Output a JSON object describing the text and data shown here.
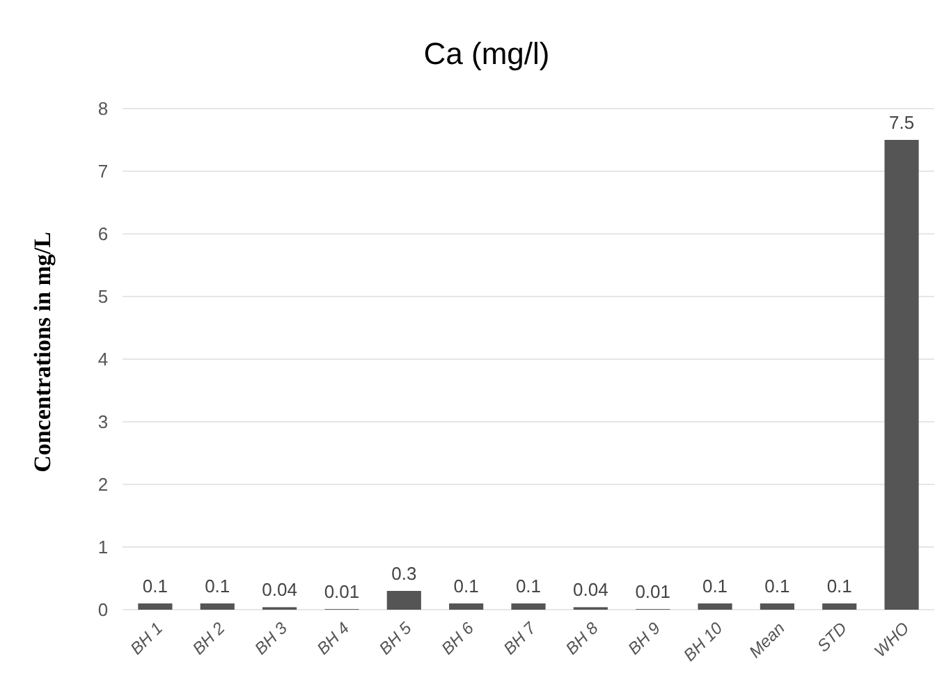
{
  "chart_data": {
    "type": "bar",
    "title": "Ca (mg/l)",
    "ylabel": "Concentrations in mg/L",
    "categories": [
      "BH 1",
      "BH 2",
      "BH 3",
      "BH 4",
      "BH 5",
      "BH 6",
      "BH 7",
      "BH 8",
      "BH 9",
      "BH 10",
      "Mean",
      "STD",
      "WHO"
    ],
    "values": [
      0.1,
      0.1,
      0.04,
      0.01,
      0.3,
      0.1,
      0.1,
      0.04,
      0.01,
      0.1,
      0.1,
      0.1,
      7.5
    ],
    "color": "#555555",
    "ylim": [
      0,
      8
    ],
    "yticks": [
      0,
      1,
      2,
      3,
      4,
      5,
      6,
      7,
      8
    ],
    "grid": true,
    "data_labels": true
  }
}
